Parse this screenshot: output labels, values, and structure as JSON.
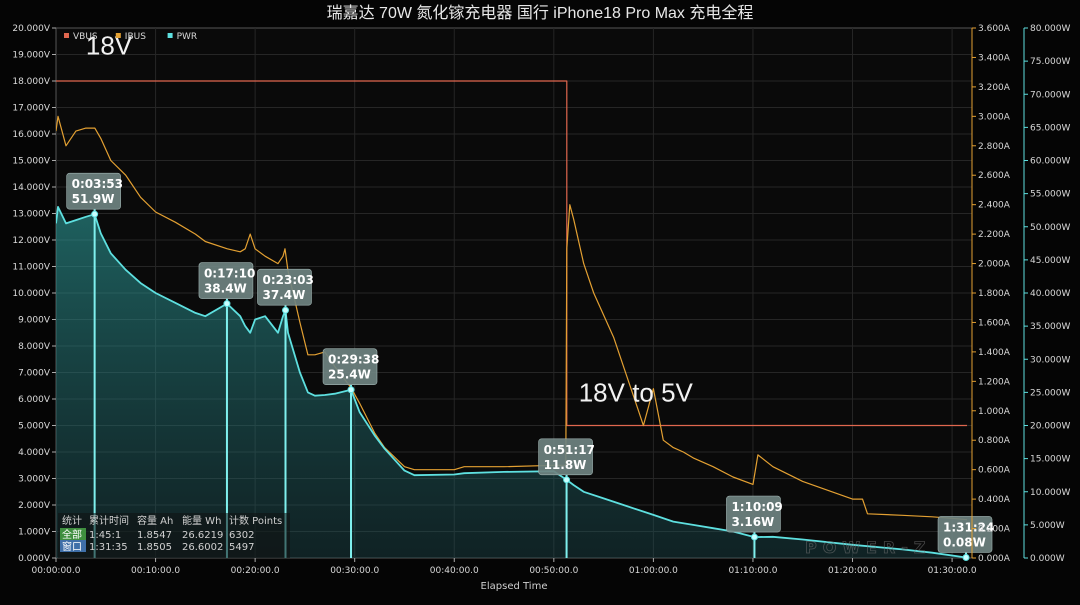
{
  "chart_data": {
    "type": "line",
    "title": "瑞嘉达 70W 氮化镓充电器 国行 iPhone18 Pro Max 充电全程",
    "xlabel": "Elapsed Time",
    "x_ticks": [
      "00:00:00.0",
      "00:10:00.0",
      "00:20:00.0",
      "00:30:00.0",
      "00:40:00.0",
      "00:50:00.0",
      "01:00:00.0",
      "01:10:00.0",
      "01:20:00.0",
      "01:30:00.0"
    ],
    "x_range_min": [
      0,
      92
    ],
    "grid": true,
    "legend_position": "top-left",
    "axes": {
      "voltage": {
        "side": "left",
        "range": [
          0,
          20
        ],
        "ticks": [
          "0.000V",
          "1.000V",
          "2.000V",
          "3.000V",
          "4.000V",
          "5.000V",
          "6.000V",
          "7.000V",
          "8.000V",
          "9.000V",
          "10.000V",
          "11.000V",
          "12.000V",
          "13.000V",
          "14.000V",
          "15.000V",
          "16.000V",
          "17.000V",
          "18.000V",
          "19.000V",
          "20.000V"
        ],
        "color": "#dcdcdc"
      },
      "current": {
        "side": "right",
        "range": [
          0,
          3.6
        ],
        "ticks": [
          "0.000A",
          "0.200A",
          "0.400A",
          "0.600A",
          "0.800A",
          "1.000A",
          "1.200A",
          "1.400A",
          "1.600A",
          "1.800A",
          "2.000A",
          "2.200A",
          "2.400A",
          "2.600A",
          "2.800A",
          "3.000A",
          "3.200A",
          "3.400A",
          "3.600A"
        ],
        "color": "#e3a032"
      },
      "power": {
        "side": "right-outer",
        "range": [
          0,
          80
        ],
        "ticks": [
          "0.000W",
          "5.000W",
          "10.000W",
          "15.000W",
          "20.000W",
          "25.000W",
          "30.000W",
          "35.000W",
          "40.000W",
          "45.000W",
          "50.000W",
          "55.000W",
          "60.000W",
          "65.000W",
          "70.000W",
          "75.000W",
          "80.000W"
        ],
        "color": "#5ee0e0"
      }
    },
    "series": [
      {
        "name": "VBUS",
        "axis": "voltage",
        "color": "#e0674f",
        "x": [
          0,
          51.3,
          51.3,
          91.5
        ],
        "y": [
          18.0,
          18.0,
          5.0,
          5.0
        ]
      },
      {
        "name": "IBUS",
        "axis": "current",
        "color": "#e3a032",
        "x": [
          0,
          0.2,
          1,
          2,
          3,
          3.9,
          4.5,
          5.5,
          7,
          8.5,
          10,
          12,
          14,
          15,
          17.2,
          18.5,
          19,
          19.5,
          20,
          21,
          22.3,
          22.8,
          23,
          23.3,
          24.5,
          25.3,
          26,
          27,
          28,
          29.6,
          30.5,
          32,
          33,
          35,
          36,
          40,
          41,
          45,
          50,
          51.2,
          51.3,
          51.6,
          52,
          53,
          54,
          56,
          57.5,
          58.5,
          59,
          60,
          61,
          62,
          63,
          64,
          66,
          68,
          70,
          70.5,
          72,
          75,
          80,
          81,
          81.5,
          85,
          88,
          90,
          91.5
        ],
        "y": [
          2.9,
          3.0,
          2.8,
          2.9,
          2.92,
          2.92,
          2.85,
          2.7,
          2.6,
          2.45,
          2.35,
          2.28,
          2.2,
          2.15,
          2.1,
          2.08,
          2.1,
          2.2,
          2.1,
          2.05,
          2.0,
          2.05,
          2.1,
          1.95,
          1.6,
          1.38,
          1.38,
          1.4,
          1.3,
          1.16,
          1.05,
          0.85,
          0.75,
          0.62,
          0.6,
          0.6,
          0.62,
          0.62,
          0.63,
          0.63,
          2.1,
          2.4,
          2.3,
          2.0,
          1.8,
          1.5,
          1.2,
          1.0,
          0.9,
          1.15,
          0.8,
          0.75,
          0.72,
          0.68,
          0.62,
          0.55,
          0.5,
          0.7,
          0.62,
          0.52,
          0.4,
          0.4,
          0.3,
          0.29,
          0.28,
          0.27,
          0.26
        ]
      },
      {
        "name": "PWR",
        "axis": "power",
        "color": "#5ee0e0",
        "x": [
          0,
          0.2,
          1,
          2,
          3,
          3.88,
          4.5,
          5.5,
          7,
          8.5,
          10,
          12,
          14,
          15,
          17.17,
          18.5,
          19,
          19.5,
          20,
          21,
          22.3,
          22.8,
          23.05,
          23.3,
          24.5,
          25.3,
          26,
          27,
          28,
          29.63,
          30.5,
          32,
          33,
          35,
          36,
          40,
          41,
          45,
          50,
          51.28,
          52,
          53,
          55,
          57,
          60,
          62,
          64,
          66,
          68,
          70.15,
          72,
          75,
          80,
          85,
          88,
          91.4
        ],
        "y": [
          50.5,
          53,
          50.5,
          51,
          51.5,
          51.9,
          49,
          46,
          43.5,
          41.5,
          40,
          38.5,
          37,
          36.5,
          38.4,
          36.5,
          35,
          34,
          36,
          36.5,
          34,
          36.5,
          37.4,
          34,
          28,
          25,
          24.5,
          24.6,
          24.8,
          25.4,
          22,
          18.5,
          16.5,
          13.2,
          12.5,
          12.6,
          12.8,
          13,
          13.1,
          11.8,
          11,
          10,
          9,
          8,
          6.5,
          5.5,
          5.0,
          4.5,
          4.0,
          3.16,
          3.2,
          2.8,
          2.0,
          1.3,
          0.8,
          0.08
        ]
      }
    ],
    "callouts": [
      {
        "time": "0:03:53",
        "value": "51.9W",
        "x": 3.88,
        "y": 51.9
      },
      {
        "time": "0:17:10",
        "value": "38.4W",
        "x": 17.17,
        "y": 38.4
      },
      {
        "time": "0:23:03",
        "value": "37.4W",
        "x": 23.05,
        "y": 37.4
      },
      {
        "time": "0:29:38",
        "value": "25.4W",
        "x": 29.63,
        "y": 25.4
      },
      {
        "time": "0:51:17",
        "value": "11.8W",
        "x": 51.28,
        "y": 11.8
      },
      {
        "time": "1:10:09",
        "value": "3.16W",
        "x": 70.15,
        "y": 3.16
      },
      {
        "time": "1:31:24",
        "value": "0.08W",
        "x": 91.4,
        "y": 0.08
      }
    ],
    "annotations": [
      {
        "text": "18V",
        "x": 3,
        "y": 19
      },
      {
        "text": "18V to 5V",
        "x": 52.5,
        "y": 5.9
      }
    ],
    "stats_table": {
      "headers": [
        "统计",
        "累计时间",
        "容量 Ah",
        "能量 Wh",
        "计数 Points"
      ],
      "rows": [
        [
          "全部",
          "1:45:1",
          "1.8547",
          "26.6219",
          "6302"
        ],
        [
          "窗口",
          "1:31:35",
          "1.8505",
          "26.6002",
          "5497"
        ]
      ]
    },
    "watermark": "POWER-Z"
  }
}
